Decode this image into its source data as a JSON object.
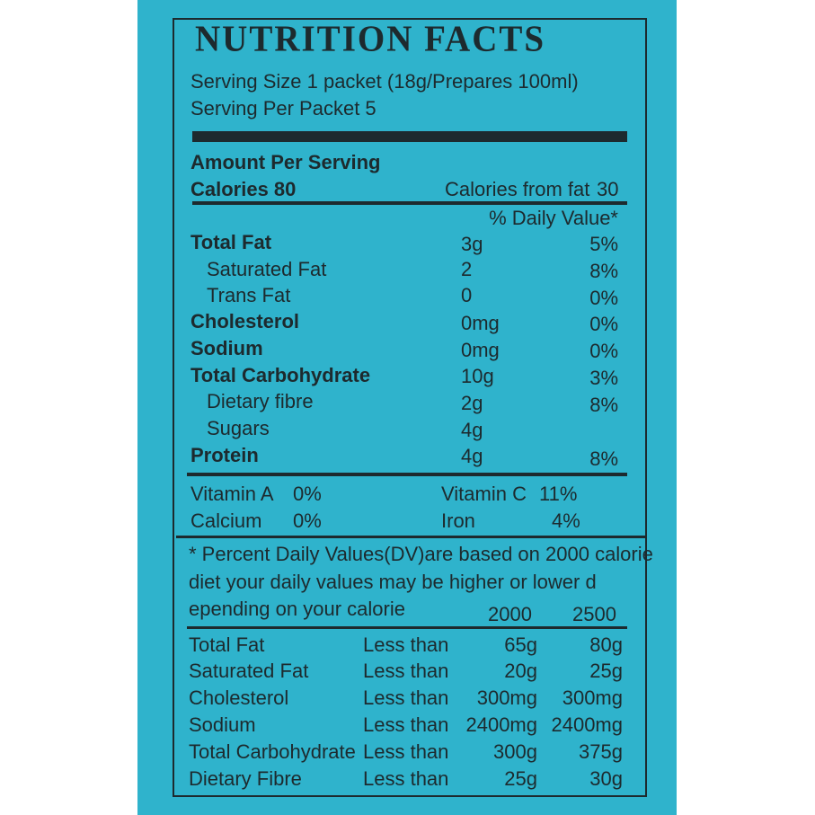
{
  "title": "NUTRITION FACTS",
  "serving_size": "Serving Size 1 packet (18g/Prepares 100ml)",
  "servings_per_packet": "Serving Per Packet 5",
  "amount_per_serving": "Amount Per Serving",
  "calories": "Calories 80",
  "calories_from_fat_label": "Calories from fat",
  "calories_from_fat_value": "30",
  "daily_value_header": "% Daily Value*",
  "nutrients": [
    {
      "name": "Total Fat",
      "amount": "3g",
      "dv": "5%"
    },
    {
      "name": "Saturated Fat",
      "amount": "2",
      "dv": "8%"
    },
    {
      "name": "Trans Fat",
      "amount": "0",
      "dv": "0%"
    },
    {
      "name": "Cholesterol",
      "amount": "0mg",
      "dv": "0%"
    },
    {
      "name": "Sodium",
      "amount": "0mg",
      "dv": "0%"
    },
    {
      "name": "Total Carbohydrate",
      "amount": "10g",
      "dv": "3%"
    },
    {
      "name": "Dietary fibre",
      "amount": "2g",
      "dv": "8%"
    },
    {
      "name": "Sugars",
      "amount": "4g",
      "dv": ""
    },
    {
      "name": "Protein",
      "amount": "4g",
      "dv": "8%"
    }
  ],
  "vitamins": [
    {
      "name": "Vitamin A",
      "value": "0%"
    },
    {
      "name": "Vitamin C",
      "value": "11%"
    },
    {
      "name": "Calcium",
      "value": "0%"
    },
    {
      "name": "Iron",
      "value": "4%"
    }
  ],
  "footnote_lines": [
    "* Percent Daily Values(DV)are based on 2000 calorie",
    "diet your daily values may be higher or lower d",
    "epending on your calorie"
  ],
  "reference_columns": [
    "2000",
    "2500"
  ],
  "reference_rows": [
    {
      "name": "Total Fat",
      "qualifier": "Less than",
      "v2000": "65g",
      "v2500": "80g"
    },
    {
      "name": "Saturated Fat",
      "qualifier": "Less than",
      "v2000": "20g",
      "v2500": "25g"
    },
    {
      "name": "Cholesterol",
      "qualifier": "Less than",
      "v2000": "300mg",
      "v2500": "300mg"
    },
    {
      "name": "Sodium",
      "qualifier": "Less than",
      "v2000": "2400mg",
      "v2500": "2400mg"
    },
    {
      "name": "Total Carbohydrate",
      "qualifier": "Less than",
      "v2000": "300g",
      "v2500": "375g"
    },
    {
      "name": "Dietary Fibre",
      "qualifier": "Less than",
      "v2000": "25g",
      "v2500": "30g"
    }
  ],
  "colors": {
    "background": "#2fb3cc",
    "ink": "#1d2a2e"
  }
}
